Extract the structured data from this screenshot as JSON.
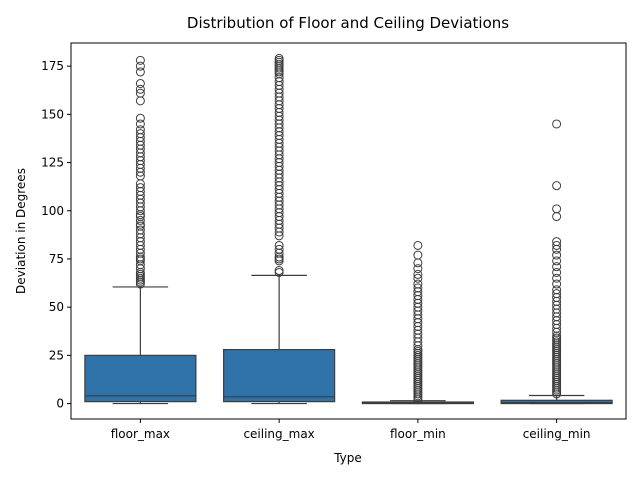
{
  "chart_data": {
    "type": "box",
    "title": "Distribution of Floor and Ceiling Deviations",
    "xlabel": "Type",
    "ylabel": "Deviation in Degrees",
    "ylim": [
      -8,
      187
    ],
    "yticks": [
      0,
      25,
      50,
      75,
      100,
      125,
      150,
      175
    ],
    "categories": [
      "floor_max",
      "ceiling_max",
      "floor_min",
      "ceiling_min"
    ],
    "box_color": "#2f73a8",
    "boxes": [
      {
        "category": "floor_max",
        "whisker_low": 0,
        "q1": 1,
        "median": 4,
        "q3": 25,
        "whisker_high": 60.5,
        "outliers": [
          62,
          63,
          64,
          65,
          66,
          67,
          68,
          70,
          72,
          74,
          75,
          76,
          78,
          80,
          82,
          84,
          86,
          88,
          90,
          92,
          93,
          95,
          97,
          98,
          100,
          102,
          104,
          106,
          108,
          110,
          112,
          114,
          118,
          120,
          122,
          124,
          126,
          128,
          130,
          132,
          134,
          136,
          138,
          140,
          142,
          145,
          148,
          157,
          161,
          163,
          166,
          172,
          175,
          178
        ]
      },
      {
        "category": "ceiling_max",
        "whisker_low": 0,
        "q1": 1,
        "median": 3.5,
        "q3": 28,
        "whisker_high": 66.5,
        "outliers": [
          68,
          69,
          74,
          75,
          76,
          78,
          80,
          82,
          87,
          89,
          91,
          93,
          95,
          97,
          99,
          101,
          103,
          105,
          107,
          109,
          111,
          113,
          115,
          117,
          119,
          121,
          123,
          125,
          127,
          129,
          131,
          133,
          135,
          137,
          139,
          141,
          143,
          145,
          147,
          149,
          151,
          153,
          155,
          157,
          159,
          161,
          163,
          165,
          167,
          169,
          171,
          172,
          173,
          174,
          175,
          176,
          177,
          178,
          179
        ]
      },
      {
        "category": "floor_min",
        "whisker_low": 0,
        "q1": 0,
        "median": 0.3,
        "q3": 0.8,
        "whisker_high": 1.5,
        "outliers": [
          2,
          3,
          4,
          5,
          6,
          7,
          8,
          9,
          10,
          11,
          12,
          13,
          14,
          15,
          16,
          17,
          18,
          19,
          20,
          21,
          22,
          23,
          24,
          25,
          26,
          27,
          28,
          30,
          32,
          34,
          36,
          38,
          40,
          42,
          44,
          46,
          48,
          50,
          52,
          54,
          56,
          58,
          60,
          62,
          65,
          67,
          70,
          73,
          77,
          82
        ]
      },
      {
        "category": "ceiling_min",
        "whisker_low": 0,
        "q1": 0,
        "median": 0.5,
        "q3": 1.7,
        "whisker_high": 4.2,
        "outliers": [
          5,
          6,
          7,
          8,
          9,
          10,
          11,
          12,
          13,
          14,
          15,
          16,
          17,
          18,
          19,
          20,
          21,
          22,
          23,
          24,
          25,
          26,
          27,
          28,
          29,
          30,
          31,
          32,
          33,
          34,
          35,
          37,
          39,
          41,
          43,
          45,
          47,
          49,
          51,
          53,
          55,
          57,
          59,
          62,
          65,
          68,
          71,
          74,
          77,
          80,
          82,
          84,
          97,
          101,
          113,
          145
        ]
      }
    ]
  }
}
